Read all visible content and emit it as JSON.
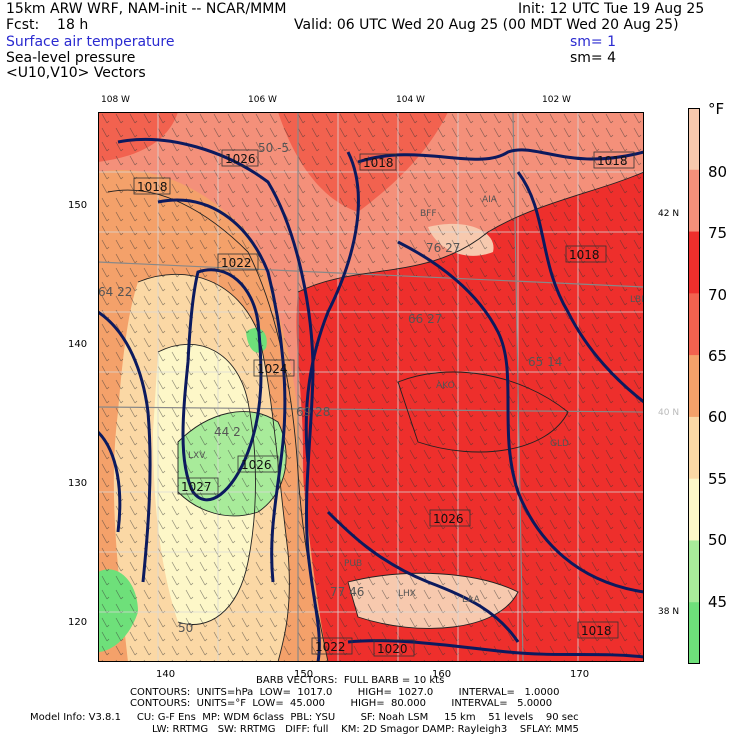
{
  "header": {
    "model_line": "15km ARW WRF, NAM-init -- NCAR/MMM",
    "init_line": "Init: 12 UTC Tue 19 Aug 25",
    "fcst_line": "Fcst:    18 h",
    "valid_line": "Valid: 06 UTC Wed 20 Aug 25 (00 MDT Wed 20 Aug 25)",
    "field1": "Surface air temperature",
    "field1_sm": "sm= 1",
    "field2": "Sea-level pressure",
    "field2_sm": "sm= 4",
    "field3": "<U10,V10> Vectors"
  },
  "axes": {
    "top_longitudes": [
      "108 W",
      "106 W",
      "104 W",
      "102 W"
    ],
    "left_ticks": [
      "150",
      "140",
      "130",
      "120"
    ],
    "bottom_ticks": [
      "140",
      "150",
      "160",
      "170"
    ],
    "right_latitudes": [
      "42 N",
      "40 N",
      "38 N"
    ]
  },
  "colorbar": {
    "unit": "°F",
    "labels": [
      "80",
      "75",
      "70",
      "65",
      "60",
      "55",
      "50",
      "45"
    ],
    "colors": [
      "#f7c9ae",
      "#f4907a",
      "#ee2f2c",
      "#f2624f",
      "#f4a16a",
      "#fbd8a5",
      "#fdf7c8",
      "#a8eb9a",
      "#6ee07a"
    ]
  },
  "pressure_labels": [
    "1018",
    "1026",
    "1018",
    "1018",
    "1018",
    "1022",
    "1024",
    "1026",
    "1027",
    "1026",
    "1022",
    "1020",
    "1018"
  ],
  "station_labels": [
    "BFF",
    "AIA",
    "LBF",
    "AKO",
    "GLD",
    "LHX",
    "LAA",
    "PUB",
    "LXV"
  ],
  "temperature_labels": [
    "76 27",
    "66 27",
    "65 14",
    "44 2",
    "50 -5",
    "77 46",
    "64 22",
    "69 28",
    "50"
  ],
  "footer": {
    "barb_line": "BARB VECTORS:  FULL BARB = 10 kts",
    "contours1": "CONTOURS:  UNITS=hPa  LOW=  1017.0        HIGH=  1027.0        INTERVAL=   1.0000",
    "contours2": "CONTOURS:  UNITS=°F  LOW=  45.000        HIGH=  80.000        INTERVAL=   5.0000",
    "model_info1": "Model Info: V3.8.1     CU: G-F Ens  MP: WDM 6class  PBL: YSU        SF: Noah LSM     15 km    51 levels    90 sec",
    "model_info2": "LW: RRTMG   SW: RRTMG   DIFF: full    KM: 2D Smagor DAMP: Rayleigh3    SFLAY: MM5"
  }
}
